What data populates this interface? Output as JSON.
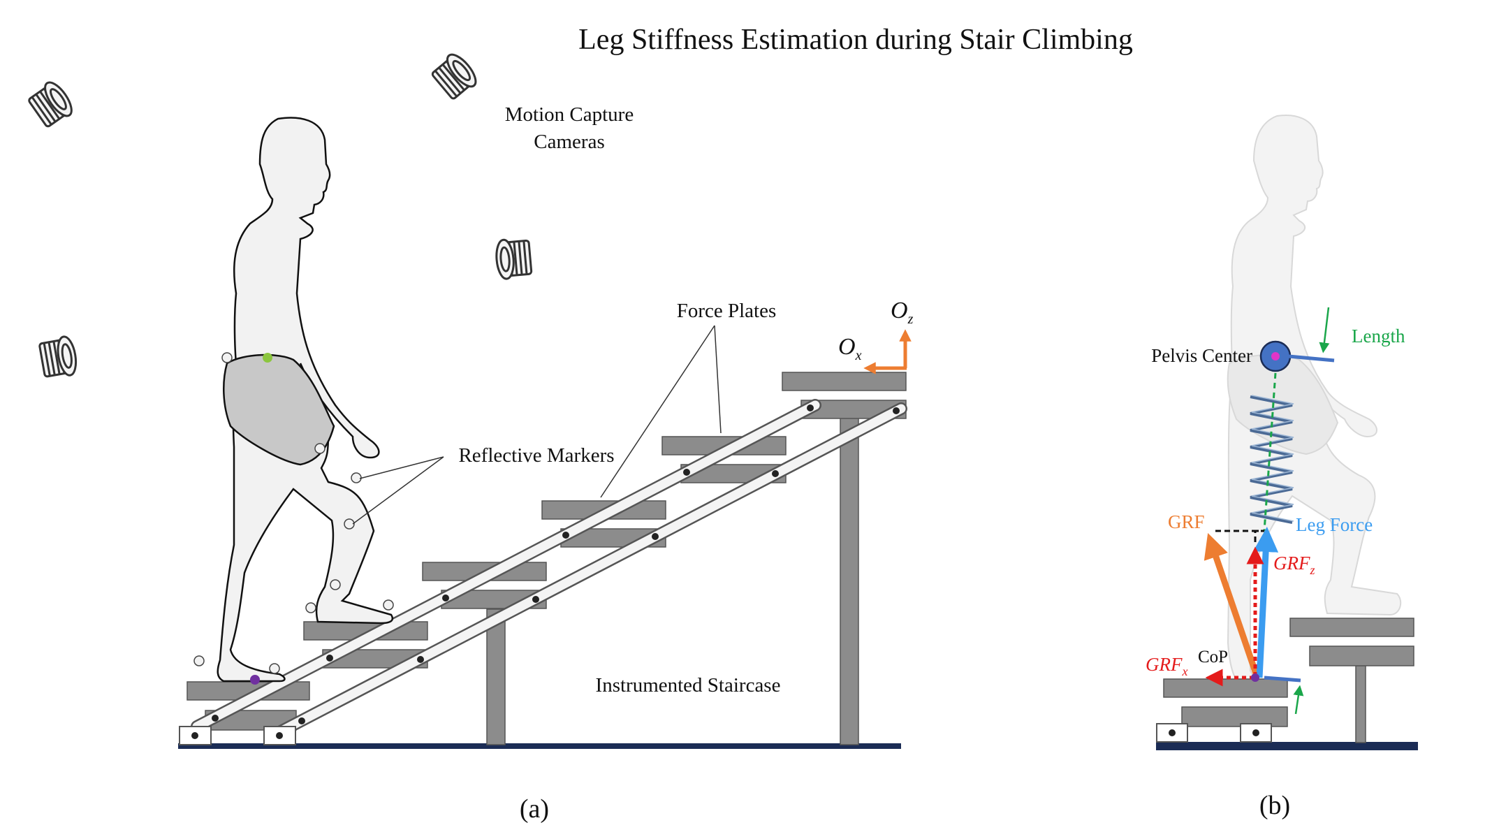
{
  "title": "Leg Stiffness Estimation during Stair Climbing",
  "panel_a": {
    "label": "(a)",
    "cameras_label_line1": "Motion Capture",
    "cameras_label_line2": "Cameras",
    "force_plates_label": "Force Plates",
    "markers_label": "Reflective Markers",
    "staircase_label": "Instrumented Staircase",
    "axis_x_main": "O",
    "axis_x_sub": "x",
    "axis_z_main": "O",
    "axis_z_sub": "z"
  },
  "panel_b": {
    "label": "(b)",
    "pelvis_label": "Pelvis Center",
    "length_label": "Length",
    "grf_label": "GRF",
    "leg_force_label": "Leg Force",
    "grfz_main": "GRF",
    "grfz_sub": "z",
    "grfx_main": "GRF",
    "grfx_sub": "x",
    "cop_label": "CoP"
  },
  "colors": {
    "steel": "#8c8c8c",
    "steel_dark": "#555555",
    "orange": "#ed7d31",
    "blue": "#3b9cf0",
    "red": "#e41b1b",
    "green": "#1aa64a",
    "navy": "#1b2c55",
    "pelvis": "#4472c4",
    "marker_purple": "#7030a0",
    "marker_green": "#8cc63f",
    "spring": "#6f8fb5"
  }
}
